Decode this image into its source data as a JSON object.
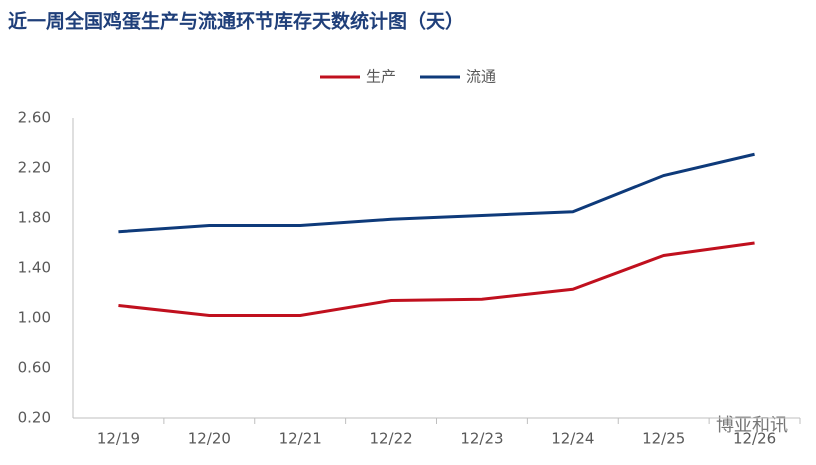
{
  "chart_data": {
    "type": "line",
    "title": "近一周全国鸡蛋生产与流通环节库存天数统计图（天）",
    "categories": [
      "12/19",
      "12/20",
      "12/21",
      "12/22",
      "12/23",
      "12/24",
      "12/25",
      "12/26"
    ],
    "series": [
      {
        "name": "生产",
        "color": "#c0101e",
        "values": [
          1.1,
          1.02,
          1.02,
          1.14,
          1.15,
          1.23,
          1.5,
          1.6
        ]
      },
      {
        "name": "流通",
        "color": "#0e3a7a",
        "values": [
          1.69,
          1.74,
          1.74,
          1.79,
          1.82,
          1.85,
          2.14,
          2.31
        ]
      }
    ],
    "ylim": [
      0.2,
      2.6
    ],
    "yticks": [
      {
        "value": 0.2,
        "label": "0.20"
      },
      {
        "value": 0.6,
        "label": "0.60"
      },
      {
        "value": 1,
        "label": "1.00"
      },
      {
        "value": 1.4,
        "label": "1.40"
      },
      {
        "value": 1.8,
        "label": "1.80"
      },
      {
        "value": 2.2,
        "label": "2.20"
      },
      {
        "value": 2.6,
        "label": "2.60"
      }
    ],
    "legend": "top",
    "watermark": "博亚和讯"
  }
}
